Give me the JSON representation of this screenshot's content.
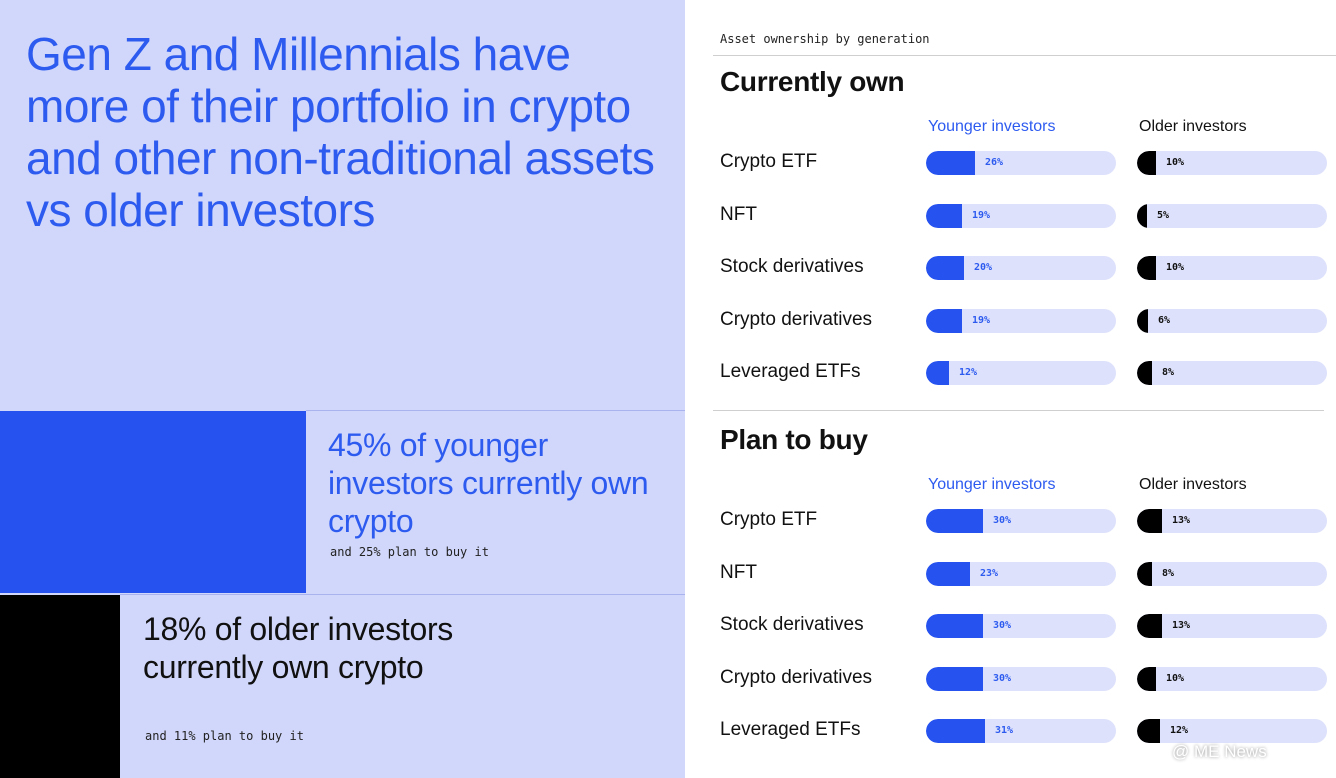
{
  "left": {
    "headline": "Gen Z and Millennials have more of their portfolio in crypto and other non-traditional assets vs older investors",
    "younger_stat": {
      "title": "45% of younger investors currently own crypto",
      "sub": "and 25% plan to buy it"
    },
    "older_stat": {
      "title": "18% of older investors currently own crypto",
      "sub": "and 11% plan to buy it"
    }
  },
  "right": {
    "kicker": "Asset ownership by generation"
  },
  "chart_data": [
    {
      "type": "bar",
      "title": "Currently own",
      "categories": [
        "Crypto ETF",
        "NFT",
        "Stock derivatives",
        "Crypto derivatives",
        "Leveraged ETFs"
      ],
      "series": [
        {
          "name": "Younger investors",
          "values": [
            26,
            19,
            20,
            19,
            12
          ],
          "labels": [
            "26%",
            "19%",
            "20%",
            "19%",
            "12%"
          ]
        },
        {
          "name": "Older investors",
          "values": [
            10,
            5,
            10,
            6,
            8
          ],
          "labels": [
            "10%",
            "5%",
            "10%",
            "6%",
            "8%"
          ]
        }
      ],
      "xlim": [
        0,
        100
      ],
      "colors": {
        "younger": "#2653f0",
        "older": "#000000",
        "track": "#dde1fb"
      }
    },
    {
      "type": "bar",
      "title": "Plan to buy",
      "categories": [
        "Crypto ETF",
        "NFT",
        "Stock derivatives",
        "Crypto derivatives",
        "Leveraged ETFs"
      ],
      "series": [
        {
          "name": "Younger investors",
          "values": [
            30,
            23,
            30,
            30,
            31
          ],
          "labels": [
            "30%",
            "23%",
            "30%",
            "30%",
            "31%"
          ]
        },
        {
          "name": "Older investors",
          "values": [
            13,
            8,
            13,
            10,
            12
          ],
          "labels": [
            "13%",
            "8%",
            "13%",
            "10%",
            "12%"
          ]
        }
      ],
      "xlim": [
        0,
        100
      ],
      "colors": {
        "younger": "#2653f0",
        "older": "#000000",
        "track": "#dde1fb"
      }
    }
  ],
  "watermark": "@ ME News",
  "colors": {
    "accent_blue": "#2d5bf0",
    "panel_lavender": "#d1d7fa"
  }
}
